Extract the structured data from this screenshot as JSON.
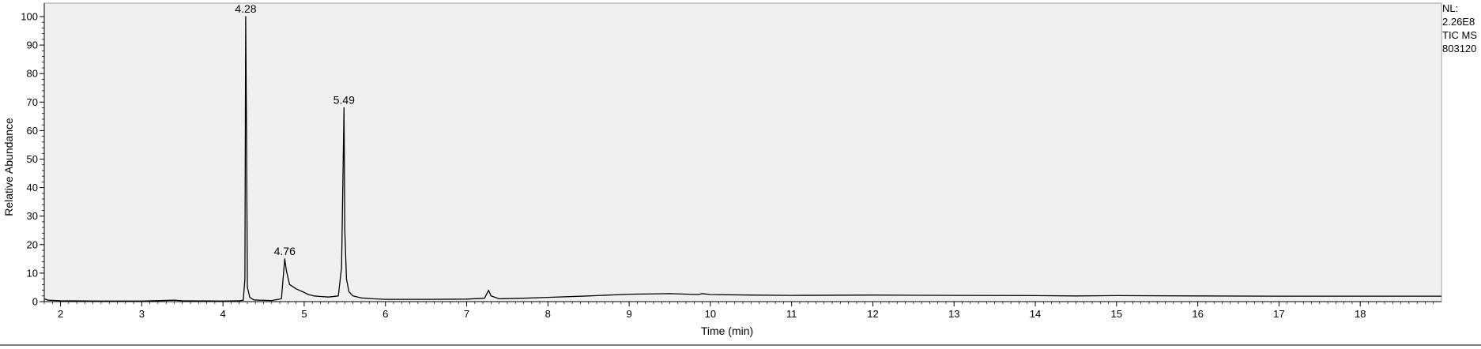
{
  "chart_data": {
    "type": "line",
    "xlabel": "Time (min)",
    "ylabel": "Relative Abundance",
    "xlim": [
      1.8,
      19.0
    ],
    "ylim": [
      0,
      100
    ],
    "x_ticks": [
      2,
      3,
      4,
      5,
      6,
      7,
      8,
      9,
      10,
      11,
      12,
      13,
      14,
      15,
      16,
      17,
      18
    ],
    "y_ticks": [
      0,
      10,
      20,
      30,
      40,
      50,
      60,
      70,
      80,
      90,
      100
    ],
    "grid": false,
    "background": "#f0f0f0",
    "line_color": "#000000",
    "info": {
      "lines": [
        "NL:",
        "2.26E8",
        "TIC  MS",
        "803120"
      ]
    },
    "peaks": [
      {
        "label": "4.28",
        "x": 4.28,
        "y": 100
      },
      {
        "label": "4.76",
        "x": 4.76,
        "y": 15
      },
      {
        "label": "5.49",
        "x": 5.49,
        "y": 68
      }
    ],
    "series": [
      {
        "x": [
          1.8,
          1.85,
          2.0,
          2.5,
          3.0,
          3.4,
          3.5,
          4.0,
          4.2,
          4.25,
          4.27,
          4.28,
          4.29,
          4.3,
          4.33,
          4.38,
          4.45,
          4.6,
          4.72,
          4.74,
          4.76,
          4.78,
          4.82,
          4.9,
          5.0,
          5.05,
          5.12,
          5.2,
          5.3,
          5.42,
          5.46,
          5.48,
          5.49,
          5.5,
          5.52,
          5.55,
          5.6,
          5.7,
          5.85,
          6.0,
          6.5,
          7.0,
          7.22,
          7.27,
          7.3,
          7.4,
          7.7,
          8.0,
          8.5,
          9.0,
          9.5,
          9.85,
          9.9,
          10.0,
          10.5,
          11.0,
          12.0,
          13.0,
          14.0,
          14.5,
          15.0,
          16.0,
          17.0,
          18.0,
          19.0
        ],
        "values": [
          1.0,
          0.5,
          0.3,
          0.2,
          0.2,
          0.5,
          0.3,
          0.2,
          0.3,
          0.5,
          8,
          100,
          60,
          5,
          1.5,
          0.6,
          0.5,
          0.4,
          1.0,
          8,
          15,
          11,
          6,
          4.5,
          3.2,
          2.5,
          2.0,
          1.8,
          1.6,
          2.0,
          12,
          50,
          68,
          25,
          8,
          3.5,
          2.0,
          1.3,
          1.0,
          0.8,
          0.8,
          0.9,
          1.2,
          4.0,
          2.0,
          1.0,
          1.2,
          1.5,
          2.0,
          2.6,
          2.8,
          2.5,
          2.8,
          2.5,
          2.3,
          2.2,
          2.3,
          2.2,
          2.1,
          2.0,
          2.1,
          2.0,
          1.9,
          1.9,
          1.9
        ]
      }
    ]
  }
}
